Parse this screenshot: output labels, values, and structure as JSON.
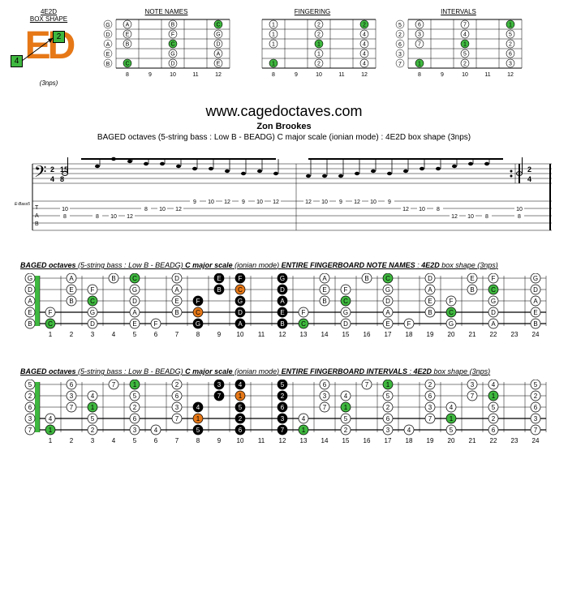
{
  "colors": {
    "orange": "#e67817",
    "green": "#3fb83f",
    "black": "#000000",
    "white": "#ffffff"
  },
  "box_shape": {
    "label_top": "4E2D",
    "label_bottom": "BOX SHAPE",
    "box1": "2",
    "box2": "4",
    "nps": "(3nps)"
  },
  "mini_diagrams": {
    "note_names": {
      "title": "NOTE NAMES",
      "tuning": [
        "G",
        "D",
        "A",
        "E",
        "B"
      ],
      "frets": [
        "8",
        "9",
        "10",
        "11",
        "12"
      ],
      "cells": [
        [
          {
            "t": "A",
            "c": "w"
          },
          {
            "t": "",
            "c": ""
          },
          {
            "t": "B",
            "c": "w"
          },
          {
            "t": "",
            "c": ""
          },
          {
            "t": "C",
            "c": "g"
          }
        ],
        [
          {
            "t": "E",
            "c": "w"
          },
          {
            "t": "",
            "c": ""
          },
          {
            "t": "F",
            "c": "w"
          },
          {
            "t": "",
            "c": ""
          },
          {
            "t": "G",
            "c": "w"
          }
        ],
        [
          {
            "t": "B",
            "c": "w"
          },
          {
            "t": "",
            "c": ""
          },
          {
            "t": "C",
            "c": "g"
          },
          {
            "t": "",
            "c": ""
          },
          {
            "t": "D",
            "c": "w"
          }
        ],
        [
          {
            "t": "",
            "c": ""
          },
          {
            "t": "",
            "c": ""
          },
          {
            "t": "G",
            "c": "w"
          },
          {
            "t": "",
            "c": ""
          },
          {
            "t": "A",
            "c": "w"
          }
        ],
        [
          {
            "t": "C",
            "c": "g"
          },
          {
            "t": "",
            "c": ""
          },
          {
            "t": "D",
            "c": "w"
          },
          {
            "t": "",
            "c": ""
          },
          {
            "t": "E",
            "c": "w"
          }
        ]
      ]
    },
    "fingering": {
      "title": "FINGERING",
      "tuning": [
        "",
        "",
        "",
        "",
        ""
      ],
      "frets": [
        "8",
        "9",
        "10",
        "11",
        "12"
      ],
      "cells": [
        [
          {
            "t": "1",
            "c": "w"
          },
          {
            "t": "",
            "c": ""
          },
          {
            "t": "2",
            "c": "w"
          },
          {
            "t": "",
            "c": ""
          },
          {
            "t": "2",
            "c": "g"
          }
        ],
        [
          {
            "t": "1",
            "c": "w"
          },
          {
            "t": "",
            "c": ""
          },
          {
            "t": "2",
            "c": "w"
          },
          {
            "t": "",
            "c": ""
          },
          {
            "t": "4",
            "c": "w"
          }
        ],
        [
          {
            "t": "1",
            "c": "w"
          },
          {
            "t": "",
            "c": ""
          },
          {
            "t": "1",
            "c": "g"
          },
          {
            "t": "",
            "c": ""
          },
          {
            "t": "4",
            "c": "w"
          }
        ],
        [
          {
            "t": "",
            "c": ""
          },
          {
            "t": "",
            "c": ""
          },
          {
            "t": "1",
            "c": "w"
          },
          {
            "t": "",
            "c": ""
          },
          {
            "t": "4",
            "c": "w"
          }
        ],
        [
          {
            "t": "1",
            "c": "g"
          },
          {
            "t": "",
            "c": ""
          },
          {
            "t": "2",
            "c": "w"
          },
          {
            "t": "",
            "c": ""
          },
          {
            "t": "4",
            "c": "w"
          }
        ]
      ]
    },
    "intervals": {
      "title": "INTERVALS",
      "tuning": [
        "5",
        "2",
        "6",
        "3",
        "7"
      ],
      "frets": [
        "8",
        "9",
        "10",
        "11",
        "12"
      ],
      "cells": [
        [
          {
            "t": "6",
            "c": "w"
          },
          {
            "t": "",
            "c": ""
          },
          {
            "t": "7",
            "c": "w"
          },
          {
            "t": "",
            "c": ""
          },
          {
            "t": "1",
            "c": "g"
          }
        ],
        [
          {
            "t": "3",
            "c": "w"
          },
          {
            "t": "",
            "c": ""
          },
          {
            "t": "4",
            "c": "w"
          },
          {
            "t": "",
            "c": ""
          },
          {
            "t": "5",
            "c": "w"
          }
        ],
        [
          {
            "t": "7",
            "c": "w"
          },
          {
            "t": "",
            "c": ""
          },
          {
            "t": "1",
            "c": "g"
          },
          {
            "t": "",
            "c": ""
          },
          {
            "t": "2",
            "c": "w"
          }
        ],
        [
          {
            "t": "",
            "c": ""
          },
          {
            "t": "",
            "c": ""
          },
          {
            "t": "5",
            "c": "w"
          },
          {
            "t": "",
            "c": ""
          },
          {
            "t": "6",
            "c": "w"
          }
        ],
        [
          {
            "t": "1",
            "c": "g"
          },
          {
            "t": "",
            "c": ""
          },
          {
            "t": "2",
            "c": "w"
          },
          {
            "t": "",
            "c": ""
          },
          {
            "t": "3",
            "c": "w"
          }
        ]
      ]
    }
  },
  "header": {
    "website": "www.cagedoctaves.com",
    "author": "Zon Brookes",
    "subtitle": "BAGED octaves (5-string bass : Low B - BEADG) C major scale (ionian mode) : 4E2D box shape (3nps)"
  },
  "notation": {
    "tuning_label": "E-Bass5",
    "tab_label": "TAB",
    "time_sig": "2/4",
    "alt_sig": "15/8",
    "tab_lines": [
      [
        null,
        null,
        null,
        null,
        null,
        null,
        null,
        null,
        "9",
        "10",
        "12",
        "9",
        "10",
        "12",
        null,
        "12",
        "10",
        "9",
        "12",
        "10",
        "9",
        null,
        null,
        null,
        null,
        null,
        null,
        null,
        null
      ],
      [
        "10",
        null,
        null,
        null,
        null,
        "8",
        "10",
        "12",
        null,
        null,
        null,
        null,
        null,
        null,
        null,
        null,
        null,
        null,
        null,
        null,
        null,
        "12",
        "10",
        "8",
        null,
        null,
        null,
        null,
        "10"
      ],
      [
        "8",
        null,
        "8",
        "10",
        "12",
        null,
        null,
        null,
        null,
        null,
        null,
        null,
        null,
        null,
        null,
        null,
        null,
        null,
        null,
        null,
        null,
        null,
        null,
        null,
        "12",
        "10",
        "8",
        null,
        "8"
      ],
      [
        null,
        null,
        null,
        null,
        null,
        null,
        null,
        null,
        null,
        null,
        null,
        null,
        null,
        null,
        null,
        null,
        null,
        null,
        null,
        null,
        null,
        null,
        null,
        null,
        null,
        null,
        null,
        null,
        null
      ],
      [
        null,
        null,
        null,
        null,
        null,
        null,
        null,
        null,
        null,
        null,
        null,
        null,
        null,
        null,
        null,
        null,
        null,
        null,
        null,
        null,
        null,
        null,
        null,
        null,
        null,
        null,
        null,
        null,
        null
      ]
    ]
  },
  "full_note_names": {
    "title_parts": [
      "BAGED octaves",
      " (5-string bass : ",
      "Low B",
      " - BEADG) ",
      "C major scale",
      " (",
      "ionian mode",
      ") ",
      "ENTIRE FINGERBOARD NOTE NAMES",
      " : ",
      "4E2D",
      " box shape (",
      "3nps",
      ")"
    ],
    "strings": [
      "G",
      "D",
      "A",
      "E",
      "B"
    ],
    "fret_labels": [
      "1",
      "2",
      "3",
      "4",
      "5",
      "6",
      "7",
      "8",
      "9",
      "10",
      "11",
      "12",
      "13",
      "14",
      "15",
      "16",
      "17",
      "18",
      "19",
      "20",
      "21",
      "22",
      "23",
      "24"
    ],
    "data": [
      [
        "",
        "A",
        "",
        "B",
        "C",
        "",
        "D",
        "",
        "E",
        "F",
        "",
        "G",
        "",
        "A",
        "",
        "B",
        "C",
        "",
        "D",
        "",
        "E",
        "F",
        "",
        "G"
      ],
      [
        "",
        "E",
        "F",
        "",
        "G",
        "",
        "A",
        "",
        "B",
        "C",
        "",
        "D",
        "",
        "E",
        "F",
        "",
        "G",
        "",
        "A",
        "",
        "B",
        "C",
        "",
        "D"
      ],
      [
        "",
        "B",
        "C",
        "",
        "D",
        "",
        "E",
        "F",
        "",
        "G",
        "",
        "A",
        "",
        "B",
        "C",
        "",
        "D",
        "",
        "E",
        "F",
        "",
        "G",
        "",
        "A"
      ],
      [
        "F",
        "",
        "G",
        "",
        "A",
        "",
        "B",
        "C",
        "",
        "D",
        "",
        "E",
        "F",
        "",
        "G",
        "",
        "A",
        "",
        "B",
        "C",
        "",
        "D",
        "",
        "E"
      ],
      [
        "C",
        "",
        "D",
        "",
        "E",
        "F",
        "",
        "G",
        "",
        "A",
        "",
        "B",
        "C",
        "",
        "D",
        "",
        "E",
        "F",
        "",
        "G",
        "",
        "A",
        "",
        "B"
      ]
    ],
    "box_range": [
      8,
      12
    ],
    "highlights": {
      "green": [
        [
          0,
          4
        ],
        [
          0,
          16
        ],
        [
          1,
          9
        ],
        [
          1,
          21
        ],
        [
          2,
          2
        ],
        [
          2,
          14
        ],
        [
          3,
          7
        ],
        [
          3,
          19
        ],
        [
          4,
          0
        ],
        [
          4,
          12
        ]
      ],
      "orange": [
        [
          1,
          9
        ],
        [
          3,
          7
        ]
      ]
    }
  },
  "full_intervals": {
    "title_parts": [
      "BAGED octaves",
      " (5-string bass : ",
      "Low B",
      " - BEADG) ",
      "C major scale",
      " (",
      "ionian mode",
      ") ",
      "ENTIRE FINGERBOARD INTERVALS",
      " : ",
      "4E2D",
      " box shape (",
      "3nps",
      ")"
    ],
    "strings": [
      "5",
      "2",
      "6",
      "3",
      "7"
    ],
    "fret_labels": [
      "1",
      "2",
      "3",
      "4",
      "5",
      "6",
      "7",
      "8",
      "9",
      "10",
      "11",
      "12",
      "13",
      "14",
      "15",
      "16",
      "17",
      "18",
      "19",
      "20",
      "21",
      "22",
      "23",
      "24"
    ],
    "data": [
      [
        "",
        "6",
        "",
        "7",
        "1",
        "",
        "2",
        "",
        "3",
        "4",
        "",
        "5",
        "",
        "6",
        "",
        "7",
        "1",
        "",
        "2",
        "",
        "3",
        "4",
        "",
        "5"
      ],
      [
        "",
        "3",
        "4",
        "",
        "5",
        "",
        "6",
        "",
        "7",
        "1",
        "",
        "2",
        "",
        "3",
        "4",
        "",
        "5",
        "",
        "6",
        "",
        "7",
        "1",
        "",
        "2"
      ],
      [
        "",
        "7",
        "1",
        "",
        "2",
        "",
        "3",
        "4",
        "",
        "5",
        "",
        "6",
        "",
        "7",
        "1",
        "",
        "2",
        "",
        "3",
        "4",
        "",
        "5",
        "",
        "6"
      ],
      [
        "4",
        "",
        "5",
        "",
        "6",
        "",
        "7",
        "1",
        "",
        "2",
        "",
        "3",
        "4",
        "",
        "5",
        "",
        "6",
        "",
        "7",
        "1",
        "",
        "2",
        "",
        "3"
      ],
      [
        "1",
        "",
        "2",
        "",
        "3",
        "4",
        "",
        "5",
        "",
        "6",
        "",
        "7",
        "1",
        "",
        "2",
        "",
        "3",
        "4",
        "",
        "5",
        "",
        "6",
        "",
        "7"
      ]
    ],
    "box_range": [
      8,
      12
    ],
    "highlights": {
      "green": [
        [
          0,
          4
        ],
        [
          0,
          16
        ],
        [
          1,
          9
        ],
        [
          1,
          21
        ],
        [
          2,
          2
        ],
        [
          2,
          14
        ],
        [
          3,
          7
        ],
        [
          3,
          19
        ],
        [
          4,
          0
        ],
        [
          4,
          12
        ]
      ],
      "orange": [
        [
          1,
          9
        ],
        [
          3,
          7
        ]
      ]
    }
  }
}
